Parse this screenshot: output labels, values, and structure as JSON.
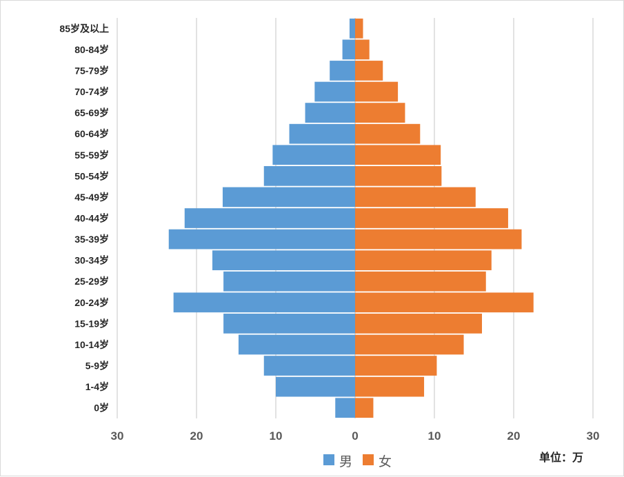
{
  "chart_data": {
    "type": "bar",
    "orientation": "horizontal",
    "subtype": "population-pyramid",
    "title": "",
    "unit_label": "单位：万",
    "categories": [
      "0岁",
      "1-4岁",
      "5-9岁",
      "10-14岁",
      "15-19岁",
      "20-24岁",
      "25-29岁",
      "30-34岁",
      "35-39岁",
      "40-44岁",
      "45-49岁",
      "50-54岁",
      "55-59岁",
      "60-64岁",
      "65-69岁",
      "70-74岁",
      "75-79岁",
      "80-84岁",
      "85岁及以上"
    ],
    "xlim": [
      -30,
      30
    ],
    "xticks": [
      -30,
      -20,
      -10,
      0,
      10,
      20,
      30
    ],
    "xtick_labels": [
      "30",
      "20",
      "10",
      "0",
      "10",
      "20",
      "30"
    ],
    "grid": true,
    "legend_position": "bottom",
    "series": [
      {
        "name": "男",
        "color": "#5b9bd5",
        "side": "left",
        "values": [
          2.5,
          10.0,
          11.5,
          14.7,
          16.6,
          22.9,
          16.6,
          18.0,
          23.5,
          21.5,
          16.7,
          11.5,
          10.4,
          8.3,
          6.3,
          5.1,
          3.2,
          1.6,
          0.7
        ]
      },
      {
        "name": "女",
        "color": "#ed7d31",
        "side": "right",
        "values": [
          2.3,
          8.7,
          10.3,
          13.7,
          16.0,
          22.5,
          16.5,
          17.2,
          21.0,
          19.3,
          15.2,
          10.9,
          10.8,
          8.2,
          6.3,
          5.4,
          3.5,
          1.8,
          1.0
        ]
      }
    ]
  }
}
